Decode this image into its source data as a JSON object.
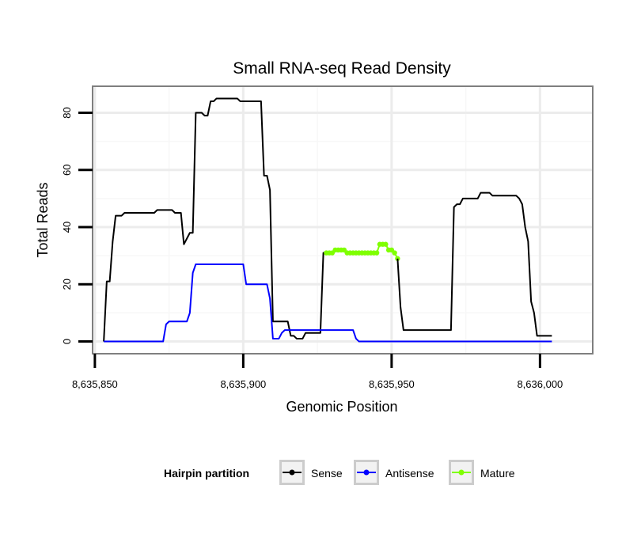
{
  "chart_data": {
    "type": "line",
    "title": "Small RNA-seq Read Density",
    "xlabel": "Genomic Position",
    "ylabel": "Total Reads",
    "xlim": [
      8635849.5,
      8636017.5
    ],
    "ylim": [
      -4,
      89
    ],
    "x_ticks": [
      8635850,
      8635900,
      8635950,
      8636000
    ],
    "x_tick_labels": [
      "8,635,850",
      "8,635,900",
      "8,635,950",
      "8,636,000"
    ],
    "y_ticks": [
      0,
      20,
      40,
      60,
      80
    ],
    "y_tick_labels": [
      "0",
      "20",
      "40",
      "60",
      "80"
    ],
    "grid": true,
    "legend": {
      "title": "Hairpin partition",
      "position": "bottom",
      "entries": [
        {
          "name": "Sense",
          "color": "#000000"
        },
        {
          "name": "Antisense",
          "color": "#0000ff"
        },
        {
          "name": "Mature",
          "color": "#7fff00"
        }
      ]
    },
    "series": [
      {
        "name": "Sense",
        "color": "#000000",
        "points": [
          [
            8635853,
            0
          ],
          [
            8635854,
            21
          ],
          [
            8635855,
            21
          ],
          [
            8635856,
            35
          ],
          [
            8635857,
            44
          ],
          [
            8635858,
            44
          ],
          [
            8635859,
            44
          ],
          [
            8635860,
            45
          ],
          [
            8635861,
            45
          ],
          [
            8635862,
            45
          ],
          [
            8635863,
            45
          ],
          [
            8635864,
            45
          ],
          [
            8635865,
            45
          ],
          [
            8635866,
            45
          ],
          [
            8635867,
            45
          ],
          [
            8635868,
            45
          ],
          [
            8635869,
            45
          ],
          [
            8635870,
            45
          ],
          [
            8635871,
            46
          ],
          [
            8635872,
            46
          ],
          [
            8635873,
            46
          ],
          [
            8635874,
            46
          ],
          [
            8635875,
            46
          ],
          [
            8635876,
            46
          ],
          [
            8635877,
            45
          ],
          [
            8635878,
            45
          ],
          [
            8635879,
            45
          ],
          [
            8635880,
            34
          ],
          [
            8635881,
            36
          ],
          [
            8635882,
            38
          ],
          [
            8635883,
            38
          ],
          [
            8635884,
            80
          ],
          [
            8635885,
            80
          ],
          [
            8635886,
            80
          ],
          [
            8635887,
            79
          ],
          [
            8635888,
            79
          ],
          [
            8635889,
            84
          ],
          [
            8635890,
            84
          ],
          [
            8635891,
            85
          ],
          [
            8635892,
            85
          ],
          [
            8635893,
            85
          ],
          [
            8635894,
            85
          ],
          [
            8635895,
            85
          ],
          [
            8635896,
            85
          ],
          [
            8635897,
            85
          ],
          [
            8635898,
            85
          ],
          [
            8635899,
            84
          ],
          [
            8635900,
            84
          ],
          [
            8635901,
            84
          ],
          [
            8635902,
            84
          ],
          [
            8635903,
            84
          ],
          [
            8635904,
            84
          ],
          [
            8635905,
            84
          ],
          [
            8635906,
            84
          ],
          [
            8635907,
            58
          ],
          [
            8635908,
            58
          ],
          [
            8635909,
            53
          ],
          [
            8635910,
            7
          ],
          [
            8635911,
            7
          ],
          [
            8635912,
            7
          ],
          [
            8635913,
            7
          ],
          [
            8635914,
            7
          ],
          [
            8635915,
            7
          ],
          [
            8635916,
            2
          ],
          [
            8635917,
            2
          ],
          [
            8635918,
            1
          ],
          [
            8635919,
            1
          ],
          [
            8635920,
            1
          ],
          [
            8635921,
            3
          ],
          [
            8635922,
            3
          ],
          [
            8635923,
            3
          ],
          [
            8635924,
            3
          ],
          [
            8635925,
            3
          ],
          [
            8635926,
            3
          ],
          [
            8635927,
            31
          ],
          [
            8635928,
            31
          ]
        ]
      },
      {
        "name": "Mature",
        "color": "#7fff00",
        "points": [
          [
            8635928,
            31
          ],
          [
            8635929,
            31
          ],
          [
            8635930,
            31
          ],
          [
            8635931,
            32
          ],
          [
            8635932,
            32
          ],
          [
            8635933,
            32
          ],
          [
            8635934,
            32
          ],
          [
            8635935,
            31
          ],
          [
            8635936,
            31
          ],
          [
            8635937,
            31
          ],
          [
            8635938,
            31
          ],
          [
            8635939,
            31
          ],
          [
            8635940,
            31
          ],
          [
            8635941,
            31
          ],
          [
            8635942,
            31
          ],
          [
            8635943,
            31
          ],
          [
            8635944,
            31
          ],
          [
            8635945,
            31
          ],
          [
            8635946,
            34
          ],
          [
            8635947,
            34
          ],
          [
            8635948,
            34
          ],
          [
            8635949,
            32
          ],
          [
            8635950,
            32
          ],
          [
            8635951,
            31
          ],
          [
            8635952,
            29
          ]
        ]
      },
      {
        "name": "Sense",
        "color": "#000000",
        "points": [
          [
            8635952,
            29
          ],
          [
            8635953,
            12
          ],
          [
            8635954,
            4
          ],
          [
            8635955,
            4
          ],
          [
            8635956,
            4
          ],
          [
            8635957,
            4
          ],
          [
            8635958,
            4
          ],
          [
            8635959,
            4
          ],
          [
            8635960,
            4
          ],
          [
            8635961,
            4
          ],
          [
            8635962,
            4
          ],
          [
            8635963,
            4
          ],
          [
            8635964,
            4
          ],
          [
            8635965,
            4
          ],
          [
            8635966,
            4
          ],
          [
            8635967,
            4
          ],
          [
            8635968,
            4
          ],
          [
            8635969,
            4
          ],
          [
            8635970,
            4
          ],
          [
            8635971,
            47
          ],
          [
            8635972,
            48
          ],
          [
            8635973,
            48
          ],
          [
            8635974,
            50
          ],
          [
            8635975,
            50
          ],
          [
            8635976,
            50
          ],
          [
            8635977,
            50
          ],
          [
            8635978,
            50
          ],
          [
            8635979,
            50
          ],
          [
            8635980,
            52
          ],
          [
            8635981,
            52
          ],
          [
            8635982,
            52
          ],
          [
            8635983,
            52
          ],
          [
            8635984,
            51
          ],
          [
            8635985,
            51
          ],
          [
            8635986,
            51
          ],
          [
            8635987,
            51
          ],
          [
            8635988,
            51
          ],
          [
            8635989,
            51
          ],
          [
            8635990,
            51
          ],
          [
            8635991,
            51
          ],
          [
            8635992,
            51
          ],
          [
            8635993,
            50
          ],
          [
            8635994,
            48
          ],
          [
            8635995,
            40
          ],
          [
            8635996,
            35
          ],
          [
            8635997,
            14
          ],
          [
            8635998,
            10
          ],
          [
            8635999,
            2
          ],
          [
            8636000,
            2
          ],
          [
            8636001,
            2
          ],
          [
            8636002,
            2
          ],
          [
            8636003,
            2
          ],
          [
            8636004,
            2
          ]
        ]
      },
      {
        "name": "Antisense",
        "color": "#0000ff",
        "points": [
          [
            8635853,
            0
          ],
          [
            8635854,
            0
          ],
          [
            8635855,
            0
          ],
          [
            8635856,
            0
          ],
          [
            8635857,
            0
          ],
          [
            8635858,
            0
          ],
          [
            8635859,
            0
          ],
          [
            8635860,
            0
          ],
          [
            8635861,
            0
          ],
          [
            8635862,
            0
          ],
          [
            8635863,
            0
          ],
          [
            8635864,
            0
          ],
          [
            8635865,
            0
          ],
          [
            8635866,
            0
          ],
          [
            8635867,
            0
          ],
          [
            8635868,
            0
          ],
          [
            8635869,
            0
          ],
          [
            8635870,
            0
          ],
          [
            8635871,
            0
          ],
          [
            8635872,
            0
          ],
          [
            8635873,
            0
          ],
          [
            8635874,
            6
          ],
          [
            8635875,
            7
          ],
          [
            8635876,
            7
          ],
          [
            8635877,
            7
          ],
          [
            8635878,
            7
          ],
          [
            8635879,
            7
          ],
          [
            8635880,
            7
          ],
          [
            8635881,
            7
          ],
          [
            8635882,
            10
          ],
          [
            8635883,
            24
          ],
          [
            8635884,
            27
          ],
          [
            8635885,
            27
          ],
          [
            8635886,
            27
          ],
          [
            8635887,
            27
          ],
          [
            8635888,
            27
          ],
          [
            8635889,
            27
          ],
          [
            8635890,
            27
          ],
          [
            8635891,
            27
          ],
          [
            8635892,
            27
          ],
          [
            8635893,
            27
          ],
          [
            8635894,
            27
          ],
          [
            8635895,
            27
          ],
          [
            8635896,
            27
          ],
          [
            8635897,
            27
          ],
          [
            8635898,
            27
          ],
          [
            8635899,
            27
          ],
          [
            8635900,
            27
          ],
          [
            8635901,
            20
          ],
          [
            8635902,
            20
          ],
          [
            8635903,
            20
          ],
          [
            8635904,
            20
          ],
          [
            8635905,
            20
          ],
          [
            8635906,
            20
          ],
          [
            8635907,
            20
          ],
          [
            8635908,
            20
          ],
          [
            8635909,
            15
          ],
          [
            8635910,
            1
          ],
          [
            8635911,
            1
          ],
          [
            8635912,
            1
          ],
          [
            8635913,
            3
          ],
          [
            8635914,
            4
          ],
          [
            8635915,
            4
          ],
          [
            8635916,
            4
          ],
          [
            8635917,
            4
          ],
          [
            8635918,
            4
          ],
          [
            8635919,
            4
          ],
          [
            8635920,
            4
          ],
          [
            8635921,
            4
          ],
          [
            8635922,
            4
          ],
          [
            8635923,
            4
          ],
          [
            8635924,
            4
          ],
          [
            8635925,
            4
          ],
          [
            8635926,
            4
          ],
          [
            8635927,
            4
          ],
          [
            8635928,
            4
          ],
          [
            8635929,
            4
          ],
          [
            8635930,
            4
          ],
          [
            8635931,
            4
          ],
          [
            8635932,
            4
          ],
          [
            8635933,
            4
          ],
          [
            8635934,
            4
          ],
          [
            8635935,
            4
          ],
          [
            8635936,
            4
          ],
          [
            8635937,
            4
          ],
          [
            8635938,
            1
          ],
          [
            8635939,
            0
          ],
          [
            8635940,
            0
          ],
          [
            8635941,
            0
          ],
          [
            8635942,
            0
          ],
          [
            8635943,
            0
          ],
          [
            8635944,
            0
          ],
          [
            8635945,
            0
          ],
          [
            8635946,
            0
          ],
          [
            8635947,
            0
          ],
          [
            8635948,
            0
          ],
          [
            8635949,
            0
          ],
          [
            8635950,
            0
          ],
          [
            8635951,
            0
          ],
          [
            8635952,
            0
          ],
          [
            8635953,
            0
          ],
          [
            8635954,
            0
          ],
          [
            8635955,
            0
          ],
          [
            8635956,
            0
          ],
          [
            8635957,
            0
          ],
          [
            8635958,
            0
          ],
          [
            8635959,
            0
          ],
          [
            8635960,
            0
          ],
          [
            8635961,
            0
          ],
          [
            8635962,
            0
          ],
          [
            8635963,
            0
          ],
          [
            8635964,
            0
          ],
          [
            8635965,
            0
          ],
          [
            8635966,
            0
          ],
          [
            8635967,
            0
          ],
          [
            8635968,
            0
          ],
          [
            8635969,
            0
          ],
          [
            8635970,
            0
          ],
          [
            8635971,
            0
          ],
          [
            8635972,
            0
          ],
          [
            8635973,
            0
          ],
          [
            8635974,
            0
          ],
          [
            8635975,
            0
          ],
          [
            8635976,
            0
          ],
          [
            8635977,
            0
          ],
          [
            8635978,
            0
          ],
          [
            8635979,
            0
          ],
          [
            8635980,
            0
          ],
          [
            8635981,
            0
          ],
          [
            8635982,
            0
          ],
          [
            8635983,
            0
          ],
          [
            8635984,
            0
          ],
          [
            8635985,
            0
          ],
          [
            8635986,
            0
          ],
          [
            8635987,
            0
          ],
          [
            8635988,
            0
          ],
          [
            8635989,
            0
          ],
          [
            8635990,
            0
          ],
          [
            8635991,
            0
          ],
          [
            8635992,
            0
          ],
          [
            8635993,
            0
          ],
          [
            8635994,
            0
          ],
          [
            8635995,
            0
          ],
          [
            8635996,
            0
          ],
          [
            8635997,
            0
          ],
          [
            8635998,
            0
          ],
          [
            8635999,
            0
          ],
          [
            8636000,
            0
          ],
          [
            8636001,
            0
          ],
          [
            8636002,
            0
          ],
          [
            8636003,
            0
          ],
          [
            8636004,
            0
          ]
        ]
      }
    ]
  }
}
